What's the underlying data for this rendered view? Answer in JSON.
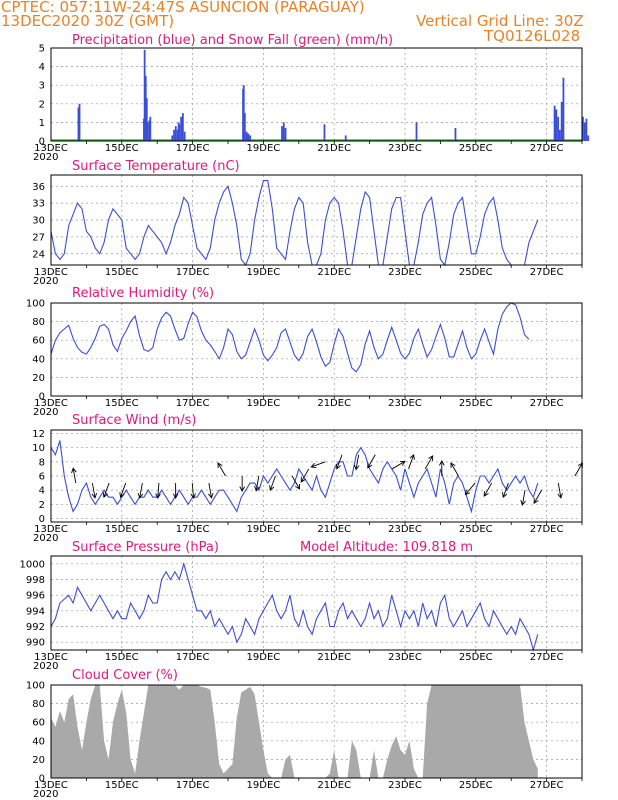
{
  "header": {
    "line1": "CPTEC:  057:11W-24:47S  ASUNCION (PARAGUAY)",
    "line2": "13DEC2020 30Z (GMT)",
    "grid_note": "Vertical Grid Line: 30Z",
    "code": "TQ0126L028"
  },
  "colors": {
    "header": "#e8822a",
    "title": "#e0197a",
    "line": "#3a4fd6",
    "snow": "#27a327",
    "cloud": "#a9a9a9"
  },
  "chart_data": [
    {
      "type": "bar",
      "title": "Precipitation (blue) and Snow Fall (green) (mm/h)",
      "x_tick_labels": [
        "13DEC",
        "15DEC",
        "17DEC",
        "19DEC",
        "21DEC",
        "23DEC",
        "25DEC",
        "27DEC"
      ],
      "x_start_label": "2020",
      "xlim_days": [
        0,
        15
      ],
      "yticks": [
        0,
        1,
        2,
        3,
        4,
        5
      ],
      "ylim": [
        0,
        5
      ],
      "series": [
        {
          "kind": "precip",
          "x": [
            0.75,
            0.78,
            2.6,
            2.62,
            2.65,
            2.68,
            2.7,
            2.75,
            2.78,
            3.4,
            3.45,
            3.5,
            3.55,
            3.58,
            3.6,
            3.65,
            3.7,
            3.75,
            5.4,
            5.42,
            5.45,
            5.5,
            5.55,
            5.6,
            6.5,
            6.55,
            6.6,
            7.7,
            8.3,
            10.3,
            11.4,
            14.2,
            14.25,
            14.3,
            14.35,
            14.4,
            14.45,
            15.0,
            15.05,
            15.1,
            15.15
          ],
          "values": [
            1.8,
            2.0,
            1.2,
            4.9,
            3.5,
            2.3,
            1.0,
            1.1,
            1.3,
            0.3,
            0.6,
            0.8,
            0.6,
            1.0,
            0.9,
            1.3,
            1.5,
            0.5,
            2.8,
            3.0,
            1.5,
            0.5,
            0.4,
            0.3,
            0.8,
            1.0,
            0.7,
            0.9,
            0.3,
            1.0,
            0.7,
            1.9,
            1.7,
            1.3,
            0.6,
            2.1,
            3.4,
            1.3,
            1.0,
            1.2,
            0.3
          ]
        }
      ]
    },
    {
      "type": "line",
      "title": "Surface Temperature (nC)",
      "yticks": [
        24,
        27,
        30,
        33,
        36
      ],
      "ylim": [
        22,
        38
      ],
      "x_step_hours": 3,
      "values": [
        28,
        24,
        23,
        24,
        29,
        31,
        33,
        32,
        28,
        27,
        25,
        24,
        26,
        30,
        32,
        31,
        30,
        25,
        24,
        23,
        24,
        27,
        29,
        28,
        27,
        26,
        24,
        26,
        29,
        31,
        34,
        33,
        29,
        25,
        24,
        23,
        25,
        30,
        33,
        35,
        36,
        33,
        29,
        23,
        22,
        24,
        30,
        34,
        37,
        37,
        32,
        25,
        24,
        23,
        28,
        32,
        34,
        33,
        26,
        22,
        21,
        24,
        30,
        33,
        34,
        33,
        28,
        22,
        22,
        27,
        32,
        35,
        34,
        28,
        22,
        21,
        27,
        32,
        34,
        34,
        28,
        22,
        21,
        26,
        31,
        33,
        34,
        29,
        23,
        22,
        26,
        31,
        33,
        34,
        29,
        24,
        24,
        27,
        31,
        33,
        34,
        30,
        25,
        23,
        22,
        21,
        21,
        22,
        26,
        28,
        30
      ]
    },
    {
      "type": "line",
      "title": "Relative Humidity (%)",
      "yticks": [
        0,
        20,
        40,
        60,
        80,
        100
      ],
      "ylim": [
        0,
        100
      ],
      "x_step_hours": 3,
      "values": [
        45,
        60,
        68,
        72,
        76,
        62,
        52,
        47,
        45,
        52,
        62,
        75,
        77,
        72,
        55,
        48,
        62,
        70,
        80,
        86,
        65,
        50,
        48,
        52,
        72,
        84,
        90,
        86,
        72,
        60,
        62,
        78,
        90,
        85,
        70,
        60,
        55,
        48,
        40,
        52,
        72,
        66,
        48,
        40,
        44,
        58,
        72,
        60,
        44,
        38,
        44,
        52,
        68,
        72,
        58,
        44,
        38,
        46,
        64,
        72,
        58,
        42,
        32,
        36,
        56,
        72,
        64,
        46,
        30,
        26,
        34,
        56,
        70,
        52,
        40,
        45,
        60,
        74,
        60,
        46,
        40,
        46,
        62,
        72,
        56,
        42,
        50,
        64,
        77,
        62,
        42,
        42,
        56,
        70,
        52,
        40,
        45,
        60,
        72,
        58,
        45,
        72,
        88,
        96,
        100,
        98,
        85,
        66,
        61
      ]
    },
    {
      "type": "line",
      "title": "Surface Wind (m/s)",
      "yticks": [
        0,
        2,
        4,
        6,
        8,
        10,
        12
      ],
      "ylim": [
        -0.5,
        12.5
      ],
      "x_step_hours": 3,
      "values": [
        10,
        9,
        11,
        6,
        3,
        1,
        2,
        4,
        5,
        3,
        2,
        3,
        4,
        3,
        3,
        2,
        3,
        4,
        3,
        2,
        3,
        3,
        4,
        3,
        3,
        4,
        3,
        2,
        3,
        4,
        3,
        2,
        3,
        3,
        4,
        3,
        2,
        3,
        4,
        4,
        3,
        2,
        1,
        3,
        4,
        5,
        5,
        4,
        6,
        5,
        6,
        7,
        6,
        5,
        4,
        5,
        7,
        6,
        5,
        4,
        6,
        4,
        3,
        5,
        7,
        8,
        8,
        6,
        6,
        9,
        10,
        9,
        7,
        6,
        5,
        7,
        8,
        7,
        6,
        4,
        7,
        5,
        3,
        5,
        6,
        7,
        5,
        3,
        7,
        5,
        2,
        5,
        6,
        5,
        3,
        1,
        4,
        6,
        6,
        5,
        6,
        7,
        5,
        4,
        5,
        6,
        5,
        6,
        4,
        3,
        5
      ],
      "arrow_speed": [
        5,
        5,
        5,
        5,
        5,
        5,
        5,
        5,
        5,
        6,
        6,
        6,
        6,
        6,
        7,
        8,
        9,
        9,
        9,
        7,
        7,
        7,
        6,
        6,
        5,
        5,
        5,
        4,
        4,
        5,
        6
      ],
      "arrow_dir_deg": [
        100,
        280,
        250,
        250,
        260,
        265,
        270,
        275,
        280,
        120,
        270,
        260,
        250,
        300,
        240,
        200,
        250,
        260,
        240,
        30,
        70,
        60,
        90,
        120,
        230,
        240,
        250,
        260,
        240,
        280,
        60
      ]
    },
    {
      "type": "line",
      "title": "Surface Pressure (hPa)",
      "annotation": "Model Altitude: 109.818 m",
      "yticks": [
        990,
        992,
        994,
        996,
        998,
        1000
      ],
      "ylim": [
        989,
        1001
      ],
      "x_step_hours": 3,
      "values": [
        992,
        993,
        995,
        995.5,
        996,
        995,
        997,
        996,
        995,
        994,
        995,
        996,
        995,
        994,
        993,
        994,
        993,
        993,
        995,
        994,
        993,
        994,
        996,
        995,
        995,
        998,
        999,
        998,
        999,
        998,
        1000,
        998,
        996,
        994,
        994,
        993,
        994,
        992,
        993,
        992,
        991,
        992,
        990,
        991,
        993,
        992,
        991,
        993,
        994,
        995,
        996,
        994,
        993,
        994,
        996,
        993,
        992,
        994,
        992,
        991,
        993,
        994,
        995,
        992,
        992,
        994,
        995,
        993,
        994,
        993,
        992,
        993,
        995,
        993,
        994,
        992,
        993,
        996,
        994,
        992,
        994,
        993,
        994,
        992,
        995,
        993,
        994,
        992,
        995,
        996,
        993,
        992,
        993,
        994,
        992,
        993,
        994,
        995,
        993,
        992,
        994,
        993,
        992,
        991,
        992,
        991,
        993,
        992,
        991,
        989,
        991
      ]
    },
    {
      "type": "area",
      "title": "Cloud Cover (%)",
      "yticks": [
        0,
        20,
        40,
        60,
        80,
        100
      ],
      "ylim": [
        0,
        100
      ],
      "x_step_hours": 3,
      "values": [
        65,
        55,
        72,
        60,
        85,
        90,
        55,
        30,
        60,
        85,
        100,
        100,
        40,
        20,
        60,
        80,
        95,
        70,
        20,
        5,
        40,
        70,
        100,
        100,
        100,
        100,
        100,
        100,
        100,
        95,
        100,
        100,
        100,
        100,
        98,
        97,
        95,
        60,
        15,
        5,
        10,
        15,
        65,
        92,
        95,
        98,
        90,
        60,
        30,
        5,
        0,
        0,
        0,
        20,
        25,
        0,
        0,
        0,
        0,
        0,
        0,
        0,
        0,
        5,
        30,
        0,
        0,
        0,
        40,
        30,
        0,
        0,
        0,
        30,
        0,
        0,
        20,
        35,
        45,
        30,
        25,
        40,
        10,
        0,
        0,
        80,
        100,
        100,
        100,
        100,
        100,
        100,
        100,
        100,
        100,
        100,
        100,
        100,
        100,
        100,
        100,
        100,
        100,
        100,
        100,
        100,
        100,
        60,
        40,
        20,
        10
      ]
    }
  ]
}
